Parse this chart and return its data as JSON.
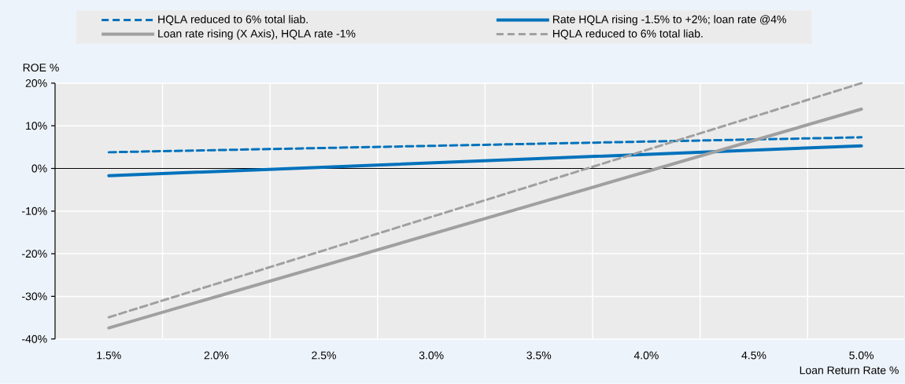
{
  "chart_data": {
    "type": "line",
    "xlabel": "Loan Return Rate %",
    "ylabel": "ROE %",
    "x": [
      1.5,
      5.0
    ],
    "series": [
      {
        "name": "HQLA reduced to 6% total liab.",
        "color": "#0072bc",
        "line_style": "dashed",
        "values": [
          3.8,
          7.3
        ]
      },
      {
        "name": "Rate HQLA rising -1.5% to +2%; loan rate @4%",
        "color": "#0072bc",
        "line_style": "solid",
        "values": [
          -1.7,
          5.3
        ]
      },
      {
        "name": "Loan rate rising (X Axis), HQLA rate -1%",
        "color": "#a0a0a0",
        "line_style": "solid",
        "values": [
          -37.4,
          13.9
        ]
      },
      {
        "name": "HQLA reduced to 6% total liab.",
        "color": "#a0a0a0",
        "line_style": "dashed",
        "values": [
          -34.9,
          20.0
        ]
      }
    ],
    "xlim": [
      1.25,
      5.2
    ],
    "ylim": [
      -40,
      20
    ],
    "xticks": [
      {
        "value": 1.5,
        "label": "1.5%"
      },
      {
        "value": 2.0,
        "label": "2.0%"
      },
      {
        "value": 2.5,
        "label": "2.5%"
      },
      {
        "value": 3.0,
        "label": "3.0%"
      },
      {
        "value": 3.5,
        "label": "3.5%"
      },
      {
        "value": 4.0,
        "label": "4.0%"
      },
      {
        "value": 4.5,
        "label": "4.5%"
      },
      {
        "value": 5.0,
        "label": "5.0%"
      }
    ],
    "yticks": [
      {
        "value": -40,
        "label": "-40%"
      },
      {
        "value": -30,
        "label": "-30%"
      },
      {
        "value": -20,
        "label": "-20%"
      },
      {
        "value": -10,
        "label": "-10%"
      },
      {
        "value": 0,
        "label": "0%"
      },
      {
        "value": 10,
        "label": "10%"
      },
      {
        "value": 20,
        "label": "20%"
      }
    ],
    "grid": true,
    "legend": "top",
    "marker": "none"
  }
}
